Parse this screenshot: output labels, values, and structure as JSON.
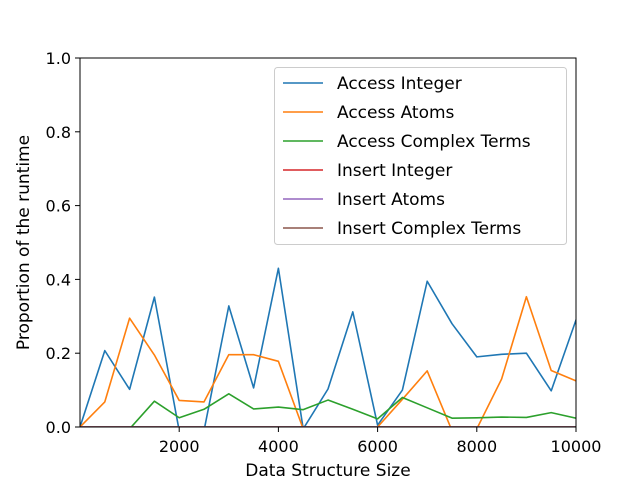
{
  "chart_data": {
    "type": "line",
    "xlabel": "Data Structure Size",
    "ylabel": "Proportion of the runtime",
    "xlim": [
      0,
      10000
    ],
    "ylim": [
      0.0,
      1.0
    ],
    "xticks": [
      2000,
      4000,
      6000,
      8000,
      10000
    ],
    "yticks": [
      0.0,
      0.2,
      0.4,
      0.6,
      0.8,
      1.0
    ],
    "xtick_labels": [
      "2000",
      "4000",
      "6000",
      "8000",
      "10000"
    ],
    "ytick_labels": [
      "0.0",
      "0.2",
      "0.4",
      "0.6",
      "0.8",
      "1.0"
    ],
    "grid": false,
    "legend_position": "top-right",
    "x": [
      0,
      500,
      1000,
      1500,
      2000,
      2500,
      3000,
      3500,
      4000,
      4500,
      5000,
      5500,
      6000,
      6500,
      7000,
      7500,
      8000,
      8500,
      9000,
      9500,
      10000
    ],
    "series": [
      {
        "name": "Access Integer",
        "color": "#1f77b4",
        "values": [
          0.0,
          0.207,
          0.102,
          0.352,
          -0.01,
          -0.01,
          0.328,
          0.106,
          0.43,
          -0.005,
          0.103,
          0.312,
          0.005,
          0.1,
          0.395,
          0.28,
          0.19,
          0.197,
          0.2,
          0.098,
          0.29
        ]
      },
      {
        "name": "Access Atoms",
        "color": "#ff7f0e",
        "values": [
          0.0,
          0.068,
          0.295,
          0.195,
          0.072,
          0.068,
          0.196,
          0.196,
          0.178,
          -0.005,
          null,
          null,
          0.0,
          0.075,
          0.152,
          -0.01,
          -0.005,
          0.13,
          0.353,
          0.153,
          0.125
        ]
      },
      {
        "name": "Access Complex Terms",
        "color": "#2ca02c",
        "values": [
          null,
          null,
          -0.005,
          0.07,
          0.025,
          0.048,
          0.09,
          0.049,
          0.054,
          0.047,
          0.073,
          0.048,
          0.022,
          0.08,
          0.052,
          0.024,
          0.025,
          0.027,
          0.026,
          0.039,
          0.024
        ]
      },
      {
        "name": "Insert Integer",
        "color": "#d62728",
        "values": [
          0,
          0,
          0,
          0,
          0,
          0,
          0,
          0,
          0,
          0,
          0,
          0,
          0,
          0,
          0,
          0,
          0,
          0,
          0,
          0,
          0
        ]
      },
      {
        "name": "Insert Atoms",
        "color": "#9467bd",
        "values": [
          0,
          0,
          0,
          0,
          0,
          0,
          0,
          0,
          0,
          0,
          0,
          0,
          0,
          0,
          0,
          0,
          0,
          0,
          0,
          0,
          0
        ]
      },
      {
        "name": "Insert Complex Terms",
        "color": "#8c564b",
        "values": [
          0,
          0,
          0,
          0,
          0,
          0,
          0,
          0,
          0,
          0,
          0,
          0,
          0,
          0,
          0,
          0,
          0,
          0,
          0,
          0,
          0
        ]
      }
    ]
  }
}
